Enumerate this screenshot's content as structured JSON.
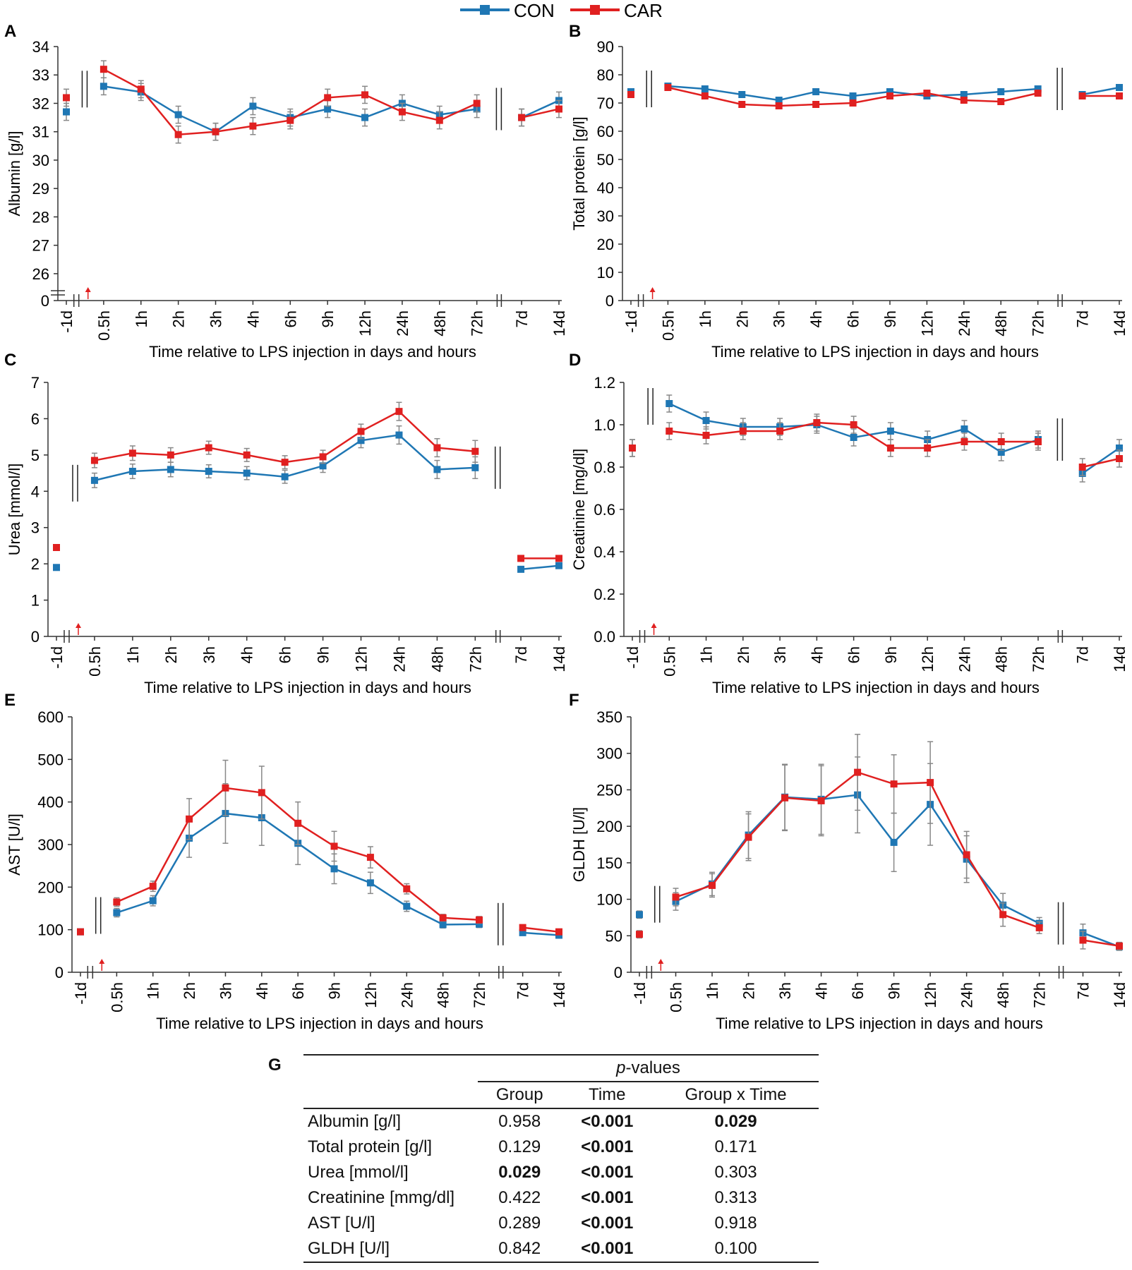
{
  "legend": {
    "items": [
      {
        "name": "CON",
        "color": "#1f77b4"
      },
      {
        "name": "CAR",
        "color": "#e02020"
      }
    ]
  },
  "chart_data": [
    {
      "type": "line",
      "panel": "A",
      "ylabel": "Albumin [g/l]",
      "xlabel": "Time relative to LPS injection in days and hours",
      "categories": [
        "-1d",
        "0.5h",
        "1h",
        "2h",
        "3h",
        "4h",
        "6h",
        "9h",
        "12h",
        "24h",
        "48h",
        "72h",
        "7d",
        "14d"
      ],
      "yticks": [
        "0",
        "26",
        "27",
        "28",
        "29",
        "30",
        "31",
        "32",
        "33",
        "34"
      ],
      "ylim": [
        25.5,
        34
      ],
      "axis_break": true,
      "series": [
        {
          "name": "CON",
          "values": [
            31.7,
            32.6,
            32.4,
            31.6,
            31.0,
            31.9,
            31.5,
            31.8,
            31.5,
            32.0,
            31.6,
            31.8,
            31.5,
            32.1
          ],
          "errors": [
            0.3,
            0.3,
            0.3,
            0.3,
            0.3,
            0.3,
            0.3,
            0.3,
            0.3,
            0.3,
            0.3,
            0.3,
            0.3,
            0.3
          ]
        },
        {
          "name": "CAR",
          "values": [
            32.2,
            33.2,
            32.5,
            30.9,
            31.0,
            31.2,
            31.4,
            32.2,
            32.3,
            31.7,
            31.4,
            32.0,
            31.5,
            31.8
          ],
          "errors": [
            0.3,
            0.3,
            0.3,
            0.3,
            0.3,
            0.3,
            0.3,
            0.3,
            0.3,
            0.3,
            0.3,
            0.3,
            0.3,
            0.3
          ]
        }
      ]
    },
    {
      "type": "line",
      "panel": "B",
      "ylabel": "Total protein [g/l]",
      "xlabel": "Time relative to LPS injection in days and hours",
      "categories": [
        "-1d",
        "0.5h",
        "1h",
        "2h",
        "3h",
        "4h",
        "6h",
        "9h",
        "12h",
        "24h",
        "48h",
        "72h",
        "7d",
        "14d"
      ],
      "yticks": [
        "0",
        "10",
        "20",
        "30",
        "40",
        "50",
        "60",
        "70",
        "80",
        "90"
      ],
      "ylim": [
        0,
        90
      ],
      "series": [
        {
          "name": "CON",
          "values": [
            74,
            76,
            75,
            73,
            71,
            74,
            72.5,
            74,
            72.5,
            73,
            74,
            75,
            73,
            75.5
          ],
          "errors": [
            1,
            1,
            1,
            1,
            1,
            1,
            1,
            1,
            1,
            1,
            1,
            1,
            1,
            1
          ]
        },
        {
          "name": "CAR",
          "values": [
            73,
            75.5,
            72.5,
            69.5,
            69,
            69.5,
            70,
            72.5,
            73.5,
            71,
            70.5,
            73.5,
            72.5,
            72.5
          ],
          "errors": [
            1,
            1,
            1,
            1,
            1,
            1,
            1,
            1,
            1,
            1,
            1,
            1,
            1,
            1
          ]
        }
      ]
    },
    {
      "type": "line",
      "panel": "C",
      "ylabel": "Urea [mmol/l]",
      "xlabel": "Time relative to LPS injection in days and hours",
      "categories": [
        "-1d",
        "0.5h",
        "1h",
        "2h",
        "3h",
        "4h",
        "6h",
        "9h",
        "12h",
        "24h",
        "48h",
        "72h",
        "7d",
        "14d"
      ],
      "yticks": [
        "0",
        "1",
        "2",
        "3",
        "4",
        "5",
        "6",
        "7"
      ],
      "ylim": [
        0,
        7
      ],
      "series": [
        {
          "name": "CON",
          "values": [
            1.9,
            4.3,
            4.55,
            4.6,
            4.55,
            4.5,
            4.4,
            4.7,
            5.4,
            5.55,
            4.6,
            4.65,
            1.85,
            1.95
          ],
          "errors": [
            0.05,
            0.2,
            0.2,
            0.2,
            0.18,
            0.18,
            0.18,
            0.18,
            0.2,
            0.25,
            0.25,
            0.3,
            0.05,
            0.05
          ]
        },
        {
          "name": "CAR",
          "values": [
            2.45,
            4.85,
            5.05,
            5.0,
            5.2,
            5.0,
            4.8,
            4.95,
            5.65,
            6.2,
            5.2,
            5.1,
            2.15,
            2.15
          ],
          "errors": [
            0.05,
            0.2,
            0.2,
            0.2,
            0.18,
            0.18,
            0.18,
            0.18,
            0.2,
            0.25,
            0.25,
            0.3,
            0.05,
            0.05
          ]
        }
      ]
    },
    {
      "type": "line",
      "panel": "D",
      "ylabel": "Creatinine [mg/dl]",
      "xlabel": "Time relative to LPS injection in days and hours",
      "categories": [
        "-1d",
        "0.5h",
        "1h",
        "2h",
        "3h",
        "4h",
        "6h",
        "9h",
        "12h",
        "24h",
        "48h",
        "72h",
        "7d",
        "14d"
      ],
      "yticks": [
        "0.0",
        "0.2",
        "0.4",
        "0.6",
        "0.8",
        "1.0",
        "1.2"
      ],
      "ylim": [
        0,
        1.2
      ],
      "series": [
        {
          "name": "CON",
          "values": [
            0.89,
            1.1,
            1.02,
            0.99,
            0.99,
            1.0,
            0.94,
            0.97,
            0.93,
            0.98,
            0.87,
            0.93,
            0.77,
            0.89
          ],
          "errors": [
            0.04,
            0.04,
            0.04,
            0.04,
            0.04,
            0.04,
            0.04,
            0.04,
            0.04,
            0.04,
            0.04,
            0.04,
            0.04,
            0.04
          ]
        },
        {
          "name": "CAR",
          "values": [
            0.89,
            0.97,
            0.95,
            0.97,
            0.97,
            1.01,
            1.0,
            0.89,
            0.89,
            0.92,
            0.92,
            0.92,
            0.8,
            0.84
          ],
          "errors": [
            0.04,
            0.04,
            0.04,
            0.04,
            0.04,
            0.04,
            0.04,
            0.04,
            0.04,
            0.04,
            0.04,
            0.04,
            0.04,
            0.04
          ]
        }
      ]
    },
    {
      "type": "line",
      "panel": "E",
      "ylabel": "AST [U/l]",
      "xlabel": "Time relative to LPS injection in days and hours",
      "categories": [
        "-1d",
        "0.5h",
        "1h",
        "2h",
        "3h",
        "4h",
        "6h",
        "9h",
        "12h",
        "24h",
        "48h",
        "72h",
        "7d",
        "14d"
      ],
      "yticks": [
        "0",
        "100",
        "200",
        "300",
        "400",
        "500",
        "600"
      ],
      "ylim": [
        0,
        600
      ],
      "series": [
        {
          "name": "CON",
          "values": [
            95,
            140,
            168,
            315,
            373,
            363,
            303,
            243,
            210,
            155,
            112,
            113,
            93,
            87
          ],
          "errors": [
            5,
            10,
            12,
            45,
            70,
            65,
            50,
            35,
            25,
            12,
            8,
            8,
            5,
            5
          ]
        },
        {
          "name": "CAR",
          "values": [
            95,
            165,
            202,
            360,
            433,
            422,
            350,
            296,
            270,
            196,
            128,
            123,
            105,
            95
          ],
          "errors": [
            5,
            10,
            12,
            48,
            65,
            62,
            50,
            35,
            25,
            12,
            8,
            8,
            5,
            5
          ]
        }
      ]
    },
    {
      "type": "line",
      "panel": "F",
      "ylabel": "GLDH [U/l]",
      "xlabel": "Time relative to LPS injection in days and hours",
      "categories": [
        "-1d",
        "0.5h",
        "1h",
        "2h",
        "3h",
        "4h",
        "6h",
        "9h",
        "12h",
        "24h",
        "48h",
        "72h",
        "7d",
        "14d"
      ],
      "yticks": [
        "0",
        "50",
        "100",
        "150",
        "200",
        "250",
        "300",
        "350"
      ],
      "ylim": [
        0,
        350
      ],
      "series": [
        {
          "name": "CON",
          "values": [
            79,
            97,
            121,
            188,
            240,
            237,
            243,
            178,
            230,
            155,
            92,
            67,
            54,
            35
          ],
          "errors": [
            5,
            12,
            16,
            32,
            45,
            48,
            52,
            40,
            56,
            32,
            16,
            8,
            12,
            5
          ]
        },
        {
          "name": "CAR",
          "values": [
            52,
            103,
            119,
            185,
            239,
            235,
            274,
            258,
            260,
            161,
            79,
            61,
            44,
            36
          ],
          "errors": [
            5,
            12,
            16,
            32,
            45,
            48,
            52,
            40,
            56,
            32,
            16,
            8,
            12,
            5
          ]
        }
      ]
    }
  ],
  "panel_labels": {
    "A": "A",
    "B": "B",
    "C": "C",
    "D": "D",
    "E": "E",
    "F": "F",
    "G": "G"
  },
  "table": {
    "title": "p-values",
    "title_italic": "p",
    "title_rest": "-values",
    "columns": [
      "Group",
      "Time",
      "Group x Time"
    ],
    "rows": [
      {
        "label": "Albumin [g/l]",
        "group": "0.958",
        "time": "<0.001",
        "gxt": "0.029"
      },
      {
        "label": "Total protein [g/l]",
        "group": "0.129",
        "time": "<0.001",
        "gxt": "0.171"
      },
      {
        "label": "Urea [mmol/l]",
        "group": "0.029",
        "time": "<0.001",
        "gxt": "0.303"
      },
      {
        "label": "Creatinine [mmg/dl]",
        "group": "0.422",
        "time": "<0.001",
        "gxt": "0.313"
      },
      {
        "label": "AST [U/l]",
        "group": "0.289",
        "time": "<0.001",
        "gxt": "0.918"
      },
      {
        "label": "GLDH [U/l]",
        "group": "0.842",
        "time": "<0.001",
        "gxt": "0.100"
      }
    ]
  }
}
